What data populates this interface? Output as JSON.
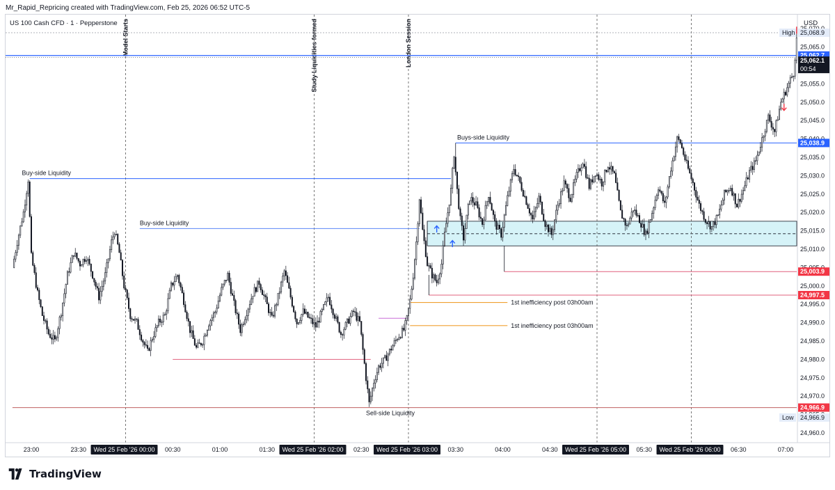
{
  "header": {
    "topline": "Mr_Rapid_Repricing created with TradingView.com, Feb 25, 2026 06:52 UTC-5"
  },
  "chart_data": {
    "type": "candlestick",
    "title": "US 100 Cash CFD · 1 · Pepperstone",
    "currency": "USD",
    "ylim": [
      24957,
      25072
    ],
    "y_ticks": [
      24960,
      24965,
      24970,
      24975,
      24980,
      24985,
      24990,
      24995,
      25000,
      25005,
      25010,
      25015,
      25020,
      25025,
      25030,
      25035,
      25040,
      25045,
      25050,
      25055,
      25060,
      25065,
      25070
    ],
    "y_tick_labels": [
      "24,960.0",
      "24,965.0",
      "24,970.0",
      "24,975.0",
      "24,980.0",
      "24,985.0",
      "24,990.0",
      "24,995.0",
      "25,000.0",
      "25,005.0",
      "25,010.0",
      "25,015.0",
      "25,020.0",
      "25,025.0",
      "25,030.0",
      "25,035.0",
      "25,040.0",
      "25,045.0",
      "25,050.0",
      "25,055.0",
      "25,060.0",
      "25,065.0",
      "25,070.0"
    ],
    "time_range_minutes": [
      -72,
      487
    ],
    "x_ticks": [
      {
        "t": -60,
        "label": "23:00",
        "highlight": false
      },
      {
        "t": -30,
        "label": "23:30",
        "highlight": false
      },
      {
        "t": 0,
        "label": "Wed 25 Feb '26   00:00",
        "highlight": true
      },
      {
        "t": 30,
        "label": "00:30",
        "highlight": false
      },
      {
        "t": 60,
        "label": "01:00",
        "highlight": false
      },
      {
        "t": 90,
        "label": "01:30",
        "highlight": false
      },
      {
        "t": 120,
        "label": "Wed 25 Feb '26   02:00",
        "highlight": true
      },
      {
        "t": 150,
        "label": "02:30",
        "highlight": false
      },
      {
        "t": 180,
        "label": "Wed 25 Feb '26   03:00",
        "highlight": true
      },
      {
        "t": 210,
        "label": "03:30",
        "highlight": false
      },
      {
        "t": 240,
        "label": "04:00",
        "highlight": false
      },
      {
        "t": 270,
        "label": "04:30",
        "highlight": false
      },
      {
        "t": 300,
        "label": "Wed 25 Feb '26   05:00",
        "highlight": true
      },
      {
        "t": 330,
        "label": "05:30",
        "highlight": false
      },
      {
        "t": 360,
        "label": "Wed 25 Feb '26   06:00",
        "highlight": true
      },
      {
        "t": 390,
        "label": "06:30",
        "highlight": false
      },
      {
        "t": 420,
        "label": "07:00",
        "highlight": false
      }
    ],
    "price_path": [
      [
        -71,
        25005
      ],
      [
        -68,
        25012
      ],
      [
        -64,
        25020
      ],
      [
        -61,
        25029
      ],
      [
        -59,
        25008
      ],
      [
        -55,
        24998
      ],
      [
        -52,
        24992
      ],
      [
        -48,
        24987
      ],
      [
        -44,
        24985
      ],
      [
        -40,
        24993
      ],
      [
        -36,
        25003
      ],
      [
        -32,
        25009
      ],
      [
        -28,
        25006
      ],
      [
        -24,
        25008
      ],
      [
        -20,
        25003
      ],
      [
        -16,
        24997
      ],
      [
        -12,
        25003
      ],
      [
        -8,
        25012
      ],
      [
        -6,
        25015
      ],
      [
        -3,
        25009
      ],
      [
        0,
        25000
      ],
      [
        4,
        24992
      ],
      [
        8,
        24990
      ],
      [
        12,
        24985
      ],
      [
        15,
        24982
      ],
      [
        18,
        24986
      ],
      [
        22,
        24990
      ],
      [
        26,
        24992
      ],
      [
        30,
        25000
      ],
      [
        34,
        25003
      ],
      [
        38,
        24996
      ],
      [
        42,
        24988
      ],
      [
        46,
        24983
      ],
      [
        50,
        24985
      ],
      [
        54,
        24990
      ],
      [
        58,
        24993
      ],
      [
        62,
        24999
      ],
      [
        66,
        25003
      ],
      [
        70,
        24995
      ],
      [
        74,
        24988
      ],
      [
        78,
        24993
      ],
      [
        82,
        24998
      ],
      [
        86,
        25001
      ],
      [
        90,
        24996
      ],
      [
        94,
        24991
      ],
      [
        98,
        24997
      ],
      [
        102,
        25004
      ],
      [
        106,
        24997
      ],
      [
        110,
        24990
      ],
      [
        114,
        24993
      ],
      [
        118,
        24991
      ],
      [
        122,
        24989
      ],
      [
        126,
        24993
      ],
      [
        130,
        24997
      ],
      [
        134,
        24992
      ],
      [
        138,
        24987
      ],
      [
        142,
        24990
      ],
      [
        146,
        24993
      ],
      [
        150,
        24990
      ],
      [
        154,
        24975
      ],
      [
        156,
        24968
      ],
      [
        159,
        24974
      ],
      [
        162,
        24978
      ],
      [
        166,
        24980
      ],
      [
        170,
        24983
      ],
      [
        174,
        24986
      ],
      [
        178,
        24988
      ],
      [
        180,
        24991
      ],
      [
        182,
        24996
      ],
      [
        184,
        25003
      ],
      [
        186,
        25012
      ],
      [
        188,
        25024
      ],
      [
        190,
        25015
      ],
      [
        193,
        25006
      ],
      [
        196,
        25003
      ],
      [
        199,
        25001
      ],
      [
        202,
        25006
      ],
      [
        204,
        25014
      ],
      [
        206,
        25020
      ],
      [
        208,
        25026
      ],
      [
        210,
        25036
      ],
      [
        212,
        25026
      ],
      [
        214,
        25018
      ],
      [
        216,
        25013
      ],
      [
        220,
        25024
      ],
      [
        224,
        25022
      ],
      [
        228,
        25017
      ],
      [
        232,
        25025
      ],
      [
        236,
        25017
      ],
      [
        240,
        25014
      ],
      [
        244,
        25024
      ],
      [
        248,
        25032
      ],
      [
        252,
        25028
      ],
      [
        256,
        25023
      ],
      [
        260,
        25018
      ],
      [
        264,
        25024
      ],
      [
        268,
        25017
      ],
      [
        272,
        25014
      ],
      [
        276,
        25022
      ],
      [
        280,
        25028
      ],
      [
        284,
        25024
      ],
      [
        288,
        25030
      ],
      [
        292,
        25034
      ],
      [
        296,
        25027
      ],
      [
        300,
        25031
      ],
      [
        304,
        25028
      ],
      [
        308,
        25033
      ],
      [
        312,
        25030
      ],
      [
        316,
        25020
      ],
      [
        320,
        25016
      ],
      [
        324,
        25021
      ],
      [
        328,
        25018
      ],
      [
        332,
        25014
      ],
      [
        336,
        25020
      ],
      [
        340,
        25027
      ],
      [
        344,
        25022
      ],
      [
        348,
        25032
      ],
      [
        352,
        25040
      ],
      [
        354,
        25039
      ],
      [
        358,
        25033
      ],
      [
        362,
        25028
      ],
      [
        366,
        25022
      ],
      [
        370,
        25018
      ],
      [
        374,
        25016
      ],
      [
        378,
        25019
      ],
      [
        382,
        25025
      ],
      [
        386,
        25027
      ],
      [
        390,
        25022
      ],
      [
        394,
        25026
      ],
      [
        398,
        25031
      ],
      [
        402,
        25034
      ],
      [
        406,
        25040
      ],
      [
        410,
        25046
      ],
      [
        414,
        25042
      ],
      [
        418,
        25050
      ],
      [
        422,
        25054
      ],
      [
        426,
        25058
      ],
      [
        428,
        25067
      ],
      [
        430,
        25066
      ],
      [
        434,
        25062
      ]
    ],
    "levels": [
      {
        "name": "Buy-side Liquidity",
        "price": 25029.2,
        "t0": -61,
        "t1": 207,
        "color": "#2962ff",
        "label_t": -66
      },
      {
        "name": "Buy-side Liquidity",
        "price": 25015.6,
        "t0": 9,
        "t1": 187,
        "color": "#5b87f7",
        "label_t": 9
      },
      {
        "name": "Buys-side Liquidity",
        "price": 25038.9,
        "t0": 210,
        "t1": 487,
        "color": "#2962ff",
        "label_t": 211
      },
      {
        "name": "",
        "price": 24980,
        "t0": 30,
        "t1": 156,
        "color": "#e0607e",
        "label_t": 0
      },
      {
        "name": "",
        "price": 24966.9,
        "t0": -72,
        "t1": 487,
        "color": "#c06060",
        "label_t": 0
      },
      {
        "name": "",
        "price": 25003.9,
        "t0": 241,
        "t1": 487,
        "color": "#e0607e",
        "label_t": 0
      },
      {
        "name": "",
        "price": 24997.5,
        "t0": 193,
        "t1": 487,
        "color": "#e0607e",
        "label_t": 0
      },
      {
        "name": "",
        "price": 24991.2,
        "t0": 161,
        "t1": 180,
        "color": "#c86dd7",
        "label_t": 0
      }
    ],
    "inefficiencies": [
      {
        "name": "1st inefficiency post 03h00am",
        "price": 24995.5,
        "t0": 181,
        "t1": 243
      },
      {
        "name": "1st inefficiency post 03h00am",
        "price": 24989.2,
        "t0": 181,
        "t1": 243
      }
    ],
    "zone": {
      "top": 25017.6,
      "bottom": 25010.9,
      "mid": 25014.2,
      "t0": 192,
      "t1": 487,
      "color": "#d6f3f8"
    },
    "sell_side": {
      "name": "Sell-side Liquidity",
      "price": 24966.9,
      "label_t": 153
    },
    "sessions": [
      {
        "name": "Model Starts",
        "t": 0
      },
      {
        "name": "Study Liquidities formed",
        "t": 120
      },
      {
        "name": "London Session",
        "t": 180
      },
      {
        "name": "",
        "t": 300
      },
      {
        "name": "",
        "t": 360
      }
    ],
    "arrows": [
      {
        "type": "up",
        "t": 198,
        "price": 25015.5,
        "color": "#2962ff"
      },
      {
        "type": "up",
        "t": 208,
        "price": 25011.5,
        "color": "#2962ff"
      },
      {
        "type": "down",
        "t": 427,
        "price": 25069.6,
        "color": "#f23645"
      },
      {
        "type": "down",
        "t": 419,
        "price": 25048.6,
        "color": "#f23645"
      }
    ],
    "price_tags": [
      {
        "label": "High",
        "value": "25,068.9",
        "price": 25068.9,
        "kind": "plain"
      },
      {
        "label": "",
        "value": "25,062.7",
        "price": 25062.7,
        "kind": "blue"
      },
      {
        "label": "",
        "value": "25,062.1",
        "price": 25061.3,
        "kind": "dark",
        "sub": "00:54"
      },
      {
        "label": "",
        "value": "25,038.9",
        "price": 25038.9,
        "kind": "blue"
      },
      {
        "label": "",
        "value": "25,003.9",
        "price": 25003.9,
        "kind": "red"
      },
      {
        "label": "",
        "value": "24,997.5",
        "price": 24997.5,
        "kind": "red"
      },
      {
        "label": "",
        "value": "24,966.9",
        "price": 24966.9,
        "kind": "red"
      },
      {
        "label": "Low",
        "value": "24,966.9",
        "price": 24964.2,
        "kind": "plain"
      }
    ],
    "current_price_line": 25062.7,
    "dotted_high_line": 25068.9,
    "brand": "TradingView"
  }
}
